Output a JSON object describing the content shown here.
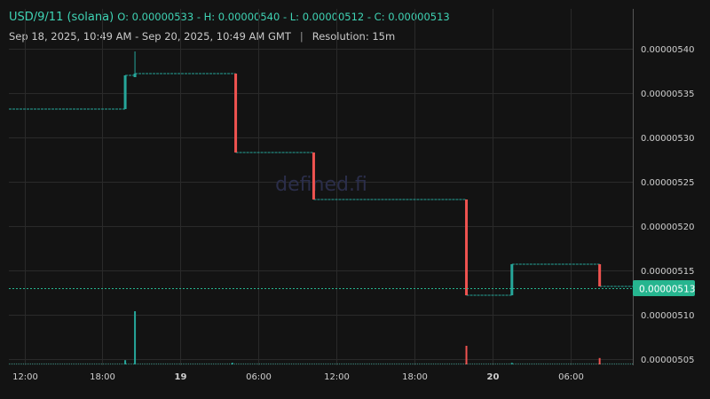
{
  "header": {
    "pair": "USD/9/11 (solana)",
    "ohlc": "O: 0.00000533 - H: 0.00000540 - L: 0.00000512 - C: 0.00000513",
    "range": "Sep 18, 2025, 10:49 AM - Sep 20, 2025, 10:49 AM GMT",
    "separator": "|",
    "resolution": "Resolution: 15m"
  },
  "watermark": "defined.fi",
  "colors": {
    "up": "#26a69a",
    "down": "#ef5350",
    "grid": "#2a2a2a",
    "background": "#131313",
    "price_tag": "#26b58f"
  },
  "chart_data": {
    "type": "candlestick",
    "ylim": [
      5.04e-06,
      5.41e-06
    ],
    "y_ticks": [
      "0.00000540",
      "0.00000535",
      "0.00000530",
      "0.00000525",
      "0.00000520",
      "0.00000515",
      "0.00000510",
      "0.00000505"
    ],
    "x_ticks": [
      {
        "label": "12:00",
        "t": 12,
        "bold": false
      },
      {
        "label": "18:00",
        "t": 18,
        "bold": false
      },
      {
        "label": "19",
        "t": 24,
        "bold": true
      },
      {
        "label": "06:00",
        "t": 30,
        "bold": false
      },
      {
        "label": "12:00",
        "t": 36,
        "bold": false
      },
      {
        "label": "18:00",
        "t": 42,
        "bold": false
      },
      {
        "label": "20",
        "t": 48,
        "bold": true
      },
      {
        "label": "06:00",
        "t": 54,
        "bold": false
      }
    ],
    "x_range": [
      10.8,
      58.8
    ],
    "current_price": "0.00000513",
    "candles": [
      {
        "t": 19.75,
        "o": 5.332e-06,
        "h": 5.37e-06,
        "l": 5.332e-06,
        "c": 5.37e-06
      },
      {
        "t": 20.5,
        "o": 5.368e-06,
        "h": 5.397e-06,
        "l": 5.368e-06,
        "c": 5.372e-06
      },
      {
        "t": 28.25,
        "o": 5.372e-06,
        "h": 5.372e-06,
        "l": 5.283e-06,
        "c": 5.283e-06
      },
      {
        "t": 34.25,
        "o": 5.283e-06,
        "h": 5.283e-06,
        "l": 5.23e-06,
        "c": 5.23e-06
      },
      {
        "t": 46.0,
        "o": 5.23e-06,
        "h": 5.23e-06,
        "l": 5.122e-06,
        "c": 5.122e-06
      },
      {
        "t": 49.5,
        "o": 5.122e-06,
        "h": 5.157e-06,
        "l": 5.122e-06,
        "c": 5.157e-06
      },
      {
        "t": 56.25,
        "o": 5.157e-06,
        "h": 5.157e-06,
        "l": 5.132e-06,
        "c": 5.132e-06
      }
    ],
    "volume": [
      {
        "t": 19.75,
        "v": 0.08,
        "dir": "up"
      },
      {
        "t": 20.5,
        "v": 1.0,
        "dir": "up"
      },
      {
        "t": 28.0,
        "v": 0.03,
        "dir": "up"
      },
      {
        "t": 46.0,
        "v": 0.35,
        "dir": "down"
      },
      {
        "t": 49.5,
        "v": 0.03,
        "dir": "up"
      },
      {
        "t": 56.25,
        "v": 0.12,
        "dir": "down"
      }
    ]
  }
}
